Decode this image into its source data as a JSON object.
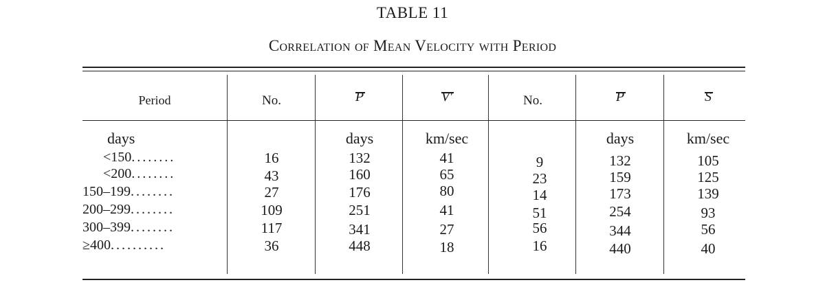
{
  "table": {
    "number": "TABLE 11",
    "caption": "Correlation of Mean Velocity with Period",
    "headers": [
      "Period",
      "No.",
      "P",
      "V′",
      "No.",
      "P",
      "S"
    ],
    "units": [
      "days",
      "",
      "days",
      "km/sec",
      "",
      "days",
      "km/sec"
    ],
    "rows": [
      {
        "label": "<150",
        "dots": "........",
        "values": [
          "16",
          "132",
          "41",
          "9",
          "132",
          "105"
        ]
      },
      {
        "label": "<200",
        "dots": "........",
        "values": [
          "43",
          "160",
          "65",
          "23",
          "159",
          "125"
        ]
      },
      {
        "label": "150–199",
        "dots": "........",
        "values": [
          "27",
          "176",
          "80",
          "14",
          "173",
          "139"
        ]
      },
      {
        "label": "200–299",
        "dots": "........",
        "values": [
          "109",
          "251",
          "41",
          "51",
          "254",
          "93"
        ]
      },
      {
        "label": "300–399",
        "dots": "........",
        "values": [
          "117",
          "341",
          "27",
          "56",
          "344",
          "56"
        ]
      },
      {
        "label": "≥400",
        "dots": "..........",
        "values": [
          "36",
          "448",
          "18",
          "16",
          "440",
          "40"
        ]
      }
    ]
  }
}
